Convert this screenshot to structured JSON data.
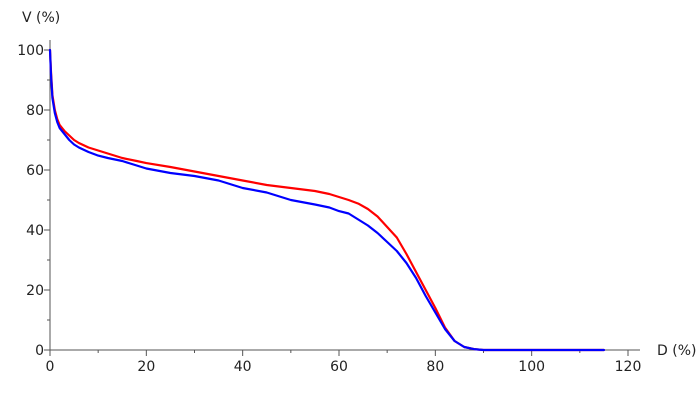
{
  "chart_data": {
    "type": "line",
    "title": "",
    "xlabel": "D (%)",
    "ylabel": "V (%)",
    "xlim": [
      0,
      120
    ],
    "ylim": [
      0,
      100
    ],
    "x_ticks": [
      0,
      20,
      40,
      60,
      80,
      100,
      120
    ],
    "x_tick_labels": [
      "0",
      "20",
      "40",
      "60",
      "80",
      "100",
      "120"
    ],
    "y_ticks": [
      0,
      20,
      40,
      60,
      80,
      100
    ],
    "y_tick_labels": [
      "0",
      "20",
      "40",
      "60",
      "80",
      "100"
    ],
    "x_minor_step": 10,
    "y_minor_step": 10,
    "grid": false,
    "legend": "none",
    "series": [
      {
        "color": "#ff0000",
        "points": [
          [
            0,
            100
          ],
          [
            0.2,
            93
          ],
          [
            0.5,
            85
          ],
          [
            1,
            80
          ],
          [
            1.5,
            77
          ],
          [
            2,
            75
          ],
          [
            3,
            73
          ],
          [
            4,
            71.5
          ],
          [
            5,
            70
          ],
          [
            6,
            69
          ],
          [
            8,
            67.5
          ],
          [
            10,
            66.5
          ],
          [
            12,
            65.5
          ],
          [
            15,
            64
          ],
          [
            18,
            63
          ],
          [
            20,
            62.3
          ],
          [
            25,
            61
          ],
          [
            30,
            59.5
          ],
          [
            35,
            58
          ],
          [
            40,
            56.5
          ],
          [
            45,
            55
          ],
          [
            50,
            54
          ],
          [
            55,
            53
          ],
          [
            58,
            52
          ],
          [
            60,
            51
          ],
          [
            62,
            50
          ],
          [
            64,
            48.8
          ],
          [
            66,
            47
          ],
          [
            68,
            44.5
          ],
          [
            70,
            41
          ],
          [
            72,
            37.5
          ],
          [
            74,
            32
          ],
          [
            76,
            26
          ],
          [
            78,
            20
          ],
          [
            80,
            14
          ],
          [
            82,
            7.5
          ],
          [
            84,
            3
          ],
          [
            86,
            1
          ],
          [
            88,
            0.3
          ],
          [
            90,
            0
          ],
          [
            100,
            0
          ],
          [
            115,
            0
          ]
        ]
      },
      {
        "color": "#0000ff",
        "points": [
          [
            0,
            100
          ],
          [
            0.2,
            92
          ],
          [
            0.5,
            84
          ],
          [
            1,
            79
          ],
          [
            1.5,
            76
          ],
          [
            2,
            74
          ],
          [
            3,
            72
          ],
          [
            4,
            70
          ],
          [
            5,
            68.5
          ],
          [
            6,
            67.5
          ],
          [
            8,
            66
          ],
          [
            10,
            64.8
          ],
          [
            12,
            64
          ],
          [
            15,
            63
          ],
          [
            18,
            61.5
          ],
          [
            20,
            60.5
          ],
          [
            25,
            59
          ],
          [
            30,
            58
          ],
          [
            35,
            56.5
          ],
          [
            40,
            54
          ],
          [
            45,
            52.5
          ],
          [
            50,
            50
          ],
          [
            55,
            48.5
          ],
          [
            58,
            47.5
          ],
          [
            60,
            46.3
          ],
          [
            62,
            45.5
          ],
          [
            64,
            43.5
          ],
          [
            66,
            41.5
          ],
          [
            68,
            39
          ],
          [
            70,
            36
          ],
          [
            72,
            33
          ],
          [
            74,
            29
          ],
          [
            76,
            24
          ],
          [
            78,
            18
          ],
          [
            80,
            12.5
          ],
          [
            82,
            7
          ],
          [
            84,
            3
          ],
          [
            86,
            1
          ],
          [
            88,
            0.3
          ],
          [
            90,
            0
          ],
          [
            100,
            0
          ],
          [
            115,
            0
          ]
        ]
      }
    ]
  },
  "colors": {
    "axis": "#555555",
    "text": "#222222",
    "background": "#ffffff"
  }
}
